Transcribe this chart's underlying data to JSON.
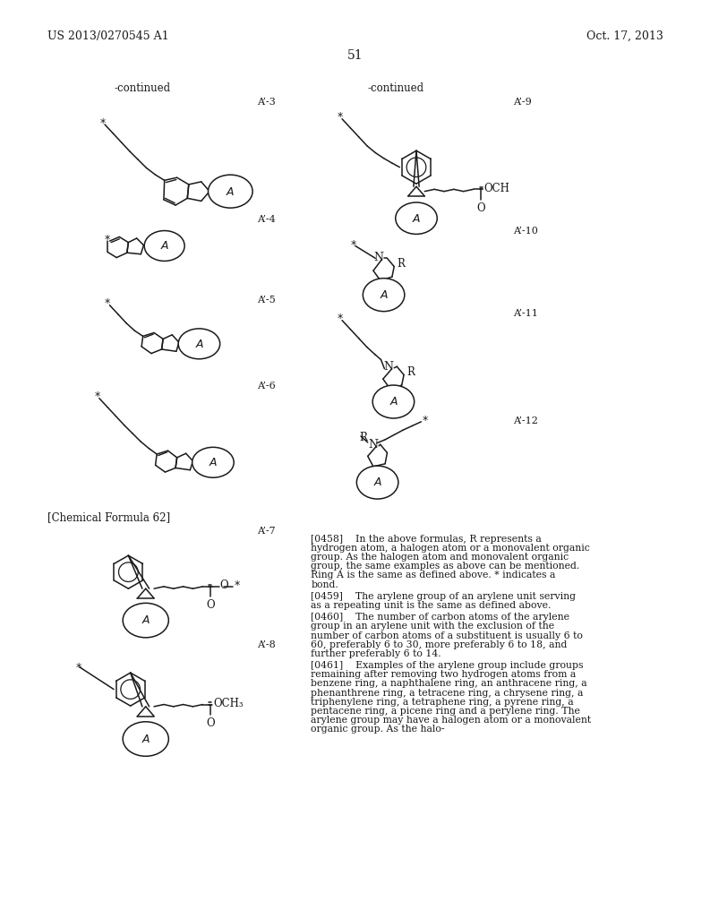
{
  "title_left": "US 2013/0270545 A1",
  "title_right": "Oct. 17, 2013",
  "page_number": "51",
  "continued_left": "-continued",
  "continued_right": "-continued",
  "chemical_formula_label": "[Chemical Formula 62]",
  "background_color": "#ffffff",
  "line_color": "#1a1a1a",
  "text_color": "#1a1a1a"
}
